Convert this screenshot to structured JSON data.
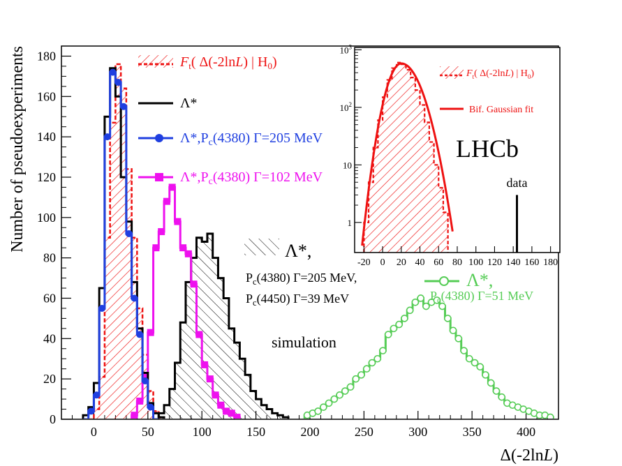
{
  "chart_data": [
    {
      "type": "histogram",
      "xlabel": "Δ(-2lnL)",
      "ylabel": "Number of pseudoexperiments",
      "xlim": [
        -30,
        430
      ],
      "ylim": [
        0,
        185
      ],
      "xticks": [
        "0",
        "50",
        "100",
        "150",
        "200",
        "250",
        "300",
        "350",
        "400"
      ],
      "yticks": [
        "0",
        "20",
        "40",
        "60",
        "80",
        "100",
        "120",
        "140",
        "160",
        "180"
      ],
      "annotations": {
        "simulation": "simulation",
        "hatched_label": "Λ*,",
        "hatched_line2": "Pc(4380) Γ=205 MeV,",
        "hatched_line3": "Pc(4450) Γ=39 MeV",
        "green_label": "Λ*,",
        "green_line2": "Pc(4380) Γ=51 MeV"
      },
      "legend": [
        {
          "label": "Ft( Δ(-2lnL) | H0)",
          "color": "#ee1111"
        },
        {
          "label": "Λ*",
          "color": "#000000"
        },
        {
          "label": "Λ*,Pc(4380) Γ=205 MeV",
          "color": "#1f3fe0"
        },
        {
          "label": "Λ*,Pc(4380) Γ=102 MeV",
          "color": "#ee11ee"
        }
      ],
      "series": [
        {
          "name": "Ft( Δ(-2lnL) | H0)",
          "color": "#ee1111",
          "style": "hatched-dashed",
          "x_start": -5,
          "bin_width": 5,
          "values": [
            0,
            5,
            21,
            90,
            147,
            176,
            164,
            124,
            90,
            55,
            32,
            14,
            4,
            0
          ]
        },
        {
          "name": "Λ*",
          "color": "#000000",
          "style": "step",
          "x_start": -10,
          "bin_width": 5,
          "values": [
            2,
            6,
            18,
            65,
            150,
            174,
            160,
            120,
            98,
            68,
            45,
            23,
            8,
            3,
            1
          ]
        },
        {
          "name": "Λ*,Pc(4380) Γ=205 MeV",
          "color": "#1f3fe0",
          "style": "step-dots",
          "x_start": -10,
          "bin_width": 5,
          "values": [
            0,
            4,
            12,
            55,
            140,
            172,
            167,
            155,
            92,
            60,
            42,
            19,
            6,
            0
          ]
        },
        {
          "name": "Λ*,Pc(4380) Γ=102 MeV",
          "color": "#ee11ee",
          "style": "step-squares",
          "x_start": 35,
          "bin_width": 5,
          "values": [
            2,
            9,
            21,
            43,
            85,
            93,
            108,
            115,
            98,
            85,
            82,
            67,
            42,
            27,
            20,
            12,
            7,
            4,
            3,
            1
          ]
        },
        {
          "name": "Λ*, Pc(4380) Γ=205 MeV, Pc(4450) Γ=39 MeV",
          "color": "#000000",
          "style": "step-hatched",
          "x_start": 60,
          "bin_width": 5,
          "values": [
            3,
            7,
            15,
            28,
            48,
            68,
            80,
            90,
            88,
            92,
            80,
            70,
            60,
            45,
            38,
            30,
            22,
            14,
            10,
            7,
            5,
            3,
            2,
            1
          ]
        },
        {
          "name": "Λ*, Pc(4380) Γ=51 MeV",
          "color": "#55cc55",
          "style": "step-circles",
          "x_start": 195,
          "bin_width": 5,
          "values": [
            2,
            3,
            4,
            6,
            8,
            10,
            12,
            14,
            16,
            20,
            22,
            25,
            28,
            30,
            34,
            42,
            45,
            47,
            50,
            54,
            58,
            60,
            56,
            58,
            59,
            56,
            50,
            44,
            40,
            34,
            30,
            28,
            26,
            22,
            18,
            14,
            11,
            8,
            7,
            6,
            5,
            4,
            3,
            2,
            2,
            1
          ]
        }
      ]
    },
    {
      "type": "histogram",
      "scale": "log",
      "xlim": [
        -30,
        190
      ],
      "ylim": [
        0.3,
        1100
      ],
      "xticks": [
        "-20",
        "0",
        "20",
        "40",
        "60",
        "80",
        "100",
        "120",
        "140",
        "160",
        "180"
      ],
      "yticks": [
        "1",
        "10",
        "10²",
        "10³"
      ],
      "brand": "LHCb",
      "data_marker": {
        "label": "data",
        "x": 144,
        "y": 3
      },
      "legend": [
        {
          "label": "Ft( Δ(-2lnL) | H0)",
          "color": "#ee1111"
        },
        {
          "label": "Bif. Gaussian fit",
          "color": "#ee1111"
        }
      ],
      "series": [
        {
          "name": "Ft( Δ(-2lnL) | H0)",
          "color": "#ee1111",
          "style": "hatched-dashed",
          "x_start": -20,
          "bin_width": 5,
          "values": [
            1,
            5,
            20,
            60,
            150,
            300,
            480,
            600,
            560,
            450,
            330,
            200,
            110,
            55,
            25,
            10,
            4,
            1.5
          ]
        }
      ],
      "fit": {
        "name": "Bif. Gaussian fit",
        "mu": 20,
        "sigma_left": 11,
        "sigma_right": 15,
        "amplitude": 580
      }
    }
  ]
}
